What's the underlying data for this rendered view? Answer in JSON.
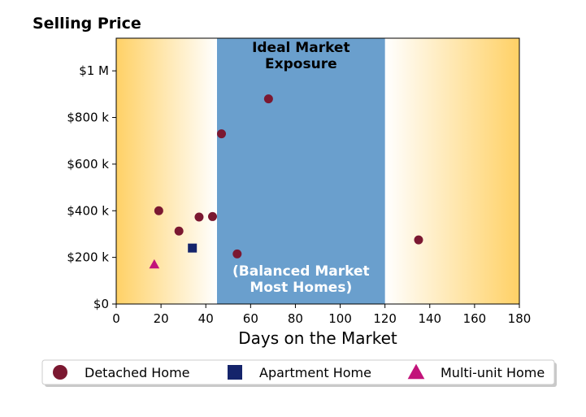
{
  "chart_data": {
    "type": "scatter",
    "title": "Selling Price",
    "xlabel": "Days on the Market",
    "ylabel": "",
    "xlim": [
      0,
      180
    ],
    "ylim": [
      0,
      1140000
    ],
    "x_ticks": [
      0,
      20,
      40,
      60,
      80,
      100,
      120,
      140,
      160,
      180
    ],
    "x_tick_labels": [
      "0",
      "20",
      "40",
      "60",
      "80",
      "100",
      "120",
      "140",
      "160",
      "180"
    ],
    "y_ticks": [
      0,
      200000,
      400000,
      600000,
      800000,
      1000000
    ],
    "y_tick_labels": [
      "$0",
      "$200 k",
      "$400 k",
      "$600 k",
      "$800 k",
      "$1 M"
    ],
    "grid": false,
    "legend_position": "bottom",
    "regions": [
      {
        "kind": "gradient",
        "from": 0,
        "to": 45,
        "color": "#FFD166",
        "fade": "right"
      },
      {
        "kind": "band",
        "from": 45,
        "to": 120,
        "color": "#6A9FCD",
        "top_label": "Ideal Market\nExposure",
        "bottom_label": "(Balanced Market\nMost Homes)"
      },
      {
        "kind": "gradient",
        "from": 120,
        "to": 180,
        "color": "#FFD166",
        "fade": "left"
      }
    ],
    "series": [
      {
        "name": "Detached Home",
        "marker": "circle",
        "color": "#7B1831",
        "points": [
          {
            "x": 19,
            "y": 400000
          },
          {
            "x": 28,
            "y": 313000
          },
          {
            "x": 37,
            "y": 373000
          },
          {
            "x": 43,
            "y": 375000
          },
          {
            "x": 47,
            "y": 730000
          },
          {
            "x": 54,
            "y": 215000
          },
          {
            "x": 68,
            "y": 880000
          },
          {
            "x": 135,
            "y": 275000
          }
        ]
      },
      {
        "name": "Apartment Home",
        "marker": "square",
        "color": "#15246B",
        "points": [
          {
            "x": 34,
            "y": 240000
          }
        ]
      },
      {
        "name": "Multi-unit Home",
        "marker": "triangle",
        "color": "#C2137A",
        "points": [
          {
            "x": 17,
            "y": 170000
          }
        ]
      }
    ]
  }
}
